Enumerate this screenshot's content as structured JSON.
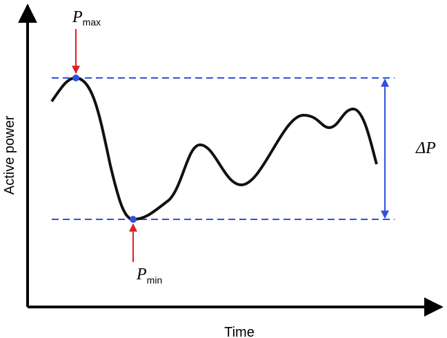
{
  "axes": {
    "y_label": "Active power",
    "x_label": "Time"
  },
  "markers": [
    {
      "symbol": "P",
      "subscript": "max"
    },
    {
      "symbol": "P",
      "subscript": "min"
    }
  ],
  "range_label": "ΔP"
}
